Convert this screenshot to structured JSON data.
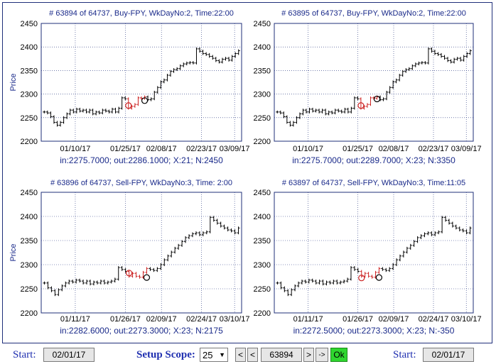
{
  "colors": {
    "text": "#1a2a8a",
    "axis": "#1f2f7a",
    "grid": "#1f2f7a",
    "bar": "#000000",
    "highlight": "#cc2222",
    "ok_bg": "#2fd62f"
  },
  "charts": [
    {
      "title": "# 63894 of 64737, Buy-FPY, WkDayNo:2, Time:22:00",
      "ylabel": "Price",
      "yticks": [
        "2450",
        "2400",
        "2350",
        "2300",
        "2250",
        "2200"
      ],
      "xticks": [
        "01/10/17",
        "01/25/17",
        "02/08/17",
        "02/23/17",
        "03/09/17"
      ],
      "footer": "in:2275.7000;  out:2286.1000;  X:21;  N:2450",
      "chart_data": {
        "type": "ohlc",
        "ylim": [
          2200,
          2450
        ],
        "grid": true,
        "entry_price": 2275.7,
        "exit_price": 2286.1,
        "closes": [
          2262,
          2260,
          2252,
          2240,
          2234,
          2240,
          2250,
          2258,
          2266,
          2262,
          2268,
          2264,
          2266,
          2262,
          2266,
          2258,
          2262,
          2260,
          2266,
          2264,
          2262,
          2268,
          2262,
          2270,
          2292,
          2290,
          2270,
          2274,
          2278,
          2292,
          2291,
          2294,
          2288,
          2290,
          2304,
          2314,
          2326,
          2330,
          2340,
          2348,
          2352,
          2354,
          2360,
          2364,
          2366,
          2367,
          2366,
          2396,
          2391,
          2386,
          2384,
          2380,
          2376,
          2371,
          2368,
          2374,
          2376,
          2372,
          2380,
          2386,
          2392
        ]
      }
    },
    {
      "title": "# 63895 of 64737, Buy-FPY, WkDayNo:2, Time:22:00",
      "ylabel": "",
      "yticks": [
        "2450",
        "2400",
        "2350",
        "2300",
        "2250",
        "2200"
      ],
      "xticks": [
        "01/10/17",
        "01/25/17",
        "02/08/17",
        "02/23/17",
        "03/09/17"
      ],
      "footer": "in:2275.7000;  out:2289.7000;  X:23;  N:3350",
      "chart_data": {
        "type": "ohlc",
        "ylim": [
          2200,
          2450
        ],
        "grid": true,
        "entry_price": 2275.7,
        "exit_price": 2289.7,
        "closes": [
          2262,
          2260,
          2252,
          2240,
          2234,
          2240,
          2250,
          2258,
          2266,
          2262,
          2268,
          2264,
          2266,
          2262,
          2266,
          2258,
          2262,
          2260,
          2266,
          2264,
          2262,
          2268,
          2262,
          2270,
          2292,
          2290,
          2270,
          2274,
          2278,
          2292,
          2291,
          2294,
          2288,
          2290,
          2304,
          2314,
          2326,
          2330,
          2340,
          2348,
          2352,
          2354,
          2360,
          2364,
          2366,
          2367,
          2366,
          2396,
          2391,
          2386,
          2384,
          2380,
          2376,
          2371,
          2368,
          2374,
          2376,
          2372,
          2380,
          2386,
          2392
        ]
      }
    },
    {
      "title": "# 63896 of 64737, Sell-FPY, WkDayNo:3, Time: 2:00",
      "ylabel": "Price",
      "yticks": [
        "2450",
        "2400",
        "2350",
        "2300",
        "2250",
        "2200"
      ],
      "xticks": [
        "01/11/17",
        "01/26/17",
        "02/09/17",
        "02/24/17",
        "03/10/17"
      ],
      "footer": "in:2282.6000;  out:2273.3000;  X:23;  N:2175",
      "chart_data": {
        "type": "ohlc",
        "ylim": [
          2200,
          2450
        ],
        "grid": true,
        "entry_price": 2282.6,
        "exit_price": 2273.3,
        "closes": [
          2262,
          2252,
          2246,
          2238,
          2248,
          2256,
          2262,
          2266,
          2264,
          2268,
          2266,
          2262,
          2266,
          2260,
          2264,
          2262,
          2266,
          2262,
          2264,
          2266,
          2270,
          2294,
          2290,
          2286,
          2276,
          2282,
          2276,
          2274,
          2284,
          2292,
          2290,
          2288,
          2292,
          2300,
          2310,
          2318,
          2326,
          2334,
          2340,
          2348,
          2356,
          2360,
          2364,
          2366,
          2362,
          2366,
          2368,
          2398,
          2392,
          2386,
          2380,
          2376,
          2372,
          2370,
          2366,
          2376
        ]
      }
    },
    {
      "title": "# 63897 of 64737, Sell-FPY, WkDayNo:3, Time:11:05",
      "ylabel": "",
      "yticks": [
        "2450",
        "2400",
        "2350",
        "2300",
        "2250",
        "2200"
      ],
      "xticks": [
        "01/11/17",
        "01/26/17",
        "02/09/17",
        "02/24/17",
        "03/10/17"
      ],
      "footer": "in:2272.5000;  out:2273.3000;  X:23;  N:-350",
      "chart_data": {
        "type": "ohlc",
        "ylim": [
          2200,
          2450
        ],
        "grid": true,
        "entry_price": 2272.5,
        "exit_price": 2273.3,
        "closes": [
          2262,
          2252,
          2246,
          2238,
          2248,
          2256,
          2262,
          2266,
          2264,
          2268,
          2266,
          2262,
          2266,
          2260,
          2264,
          2262,
          2266,
          2262,
          2264,
          2266,
          2270,
          2294,
          2290,
          2286,
          2276,
          2282,
          2276,
          2274,
          2284,
          2292,
          2290,
          2288,
          2292,
          2300,
          2310,
          2318,
          2326,
          2334,
          2340,
          2348,
          2356,
          2360,
          2364,
          2366,
          2362,
          2366,
          2368,
          2398,
          2392,
          2386,
          2380,
          2376,
          2372,
          2370,
          2366,
          2376
        ]
      }
    }
  ],
  "controls": {
    "start_left_label": "Start:",
    "start_left_value": "02/01/17",
    "setup_scope_label": "Setup Scope:",
    "setup_scope_value": "25",
    "first_btn": "<",
    "prev_btn": "<",
    "record_value": "63894",
    "next_btn": ">",
    "last_btn": "->",
    "ok_btn": "Ok",
    "start_right_label": "Start:",
    "start_right_value": "02/01/17"
  }
}
